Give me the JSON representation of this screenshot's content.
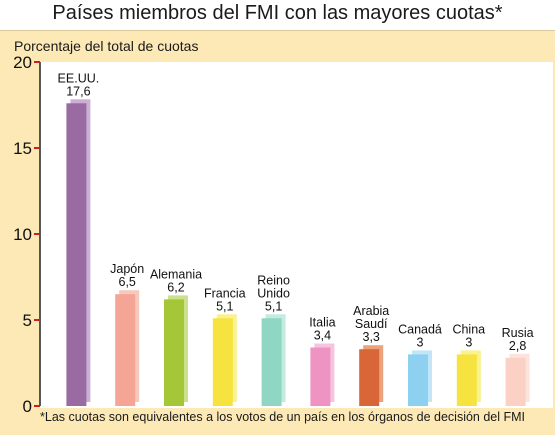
{
  "chart_data": {
    "type": "bar",
    "title": "Países miembros del FMI con las mayores cuotas*",
    "ylabel": "Porcentaje del total de cuotas",
    "footnote": "*Las cuotas son equivalentes a los votos de un país en los órganos de decisión del FMI",
    "ylim": [
      0,
      20
    ],
    "yticks": [
      "0",
      "5",
      "10",
      "15",
      "20"
    ],
    "grid": false,
    "categories": [
      [
        "EE.UU."
      ],
      [
        "Japón"
      ],
      [
        "Alemania"
      ],
      [
        "Francia"
      ],
      [
        "Reino",
        "Unido"
      ],
      [
        "Italia"
      ],
      [
        "Arabia",
        "Saudí"
      ],
      [
        "Canadá"
      ],
      [
        "China"
      ],
      [
        "Rusia"
      ]
    ],
    "values": [
      17.6,
      6.5,
      6.2,
      5.1,
      5.1,
      3.4,
      3.3,
      3,
      3,
      2.8
    ],
    "value_labels": [
      "17,6",
      "6,5",
      "6,2",
      "5,1",
      "5,1",
      "3,4",
      "3,3",
      "3",
      "3",
      "2,8"
    ],
    "colors": [
      "#9a6aa3",
      "#f4a596",
      "#a4c637",
      "#f6e33f",
      "#8fd6c3",
      "#ee93c2",
      "#d96636",
      "#8ed0f0",
      "#f6e33f",
      "#fbd0c5"
    ],
    "shadow_colors": [
      "#cbb0d4",
      "#f7c9bd",
      "#cbe18c",
      "#faf18f",
      "#c3ebdf",
      "#f5c4de",
      "#e9a37d",
      "#c2e6f7",
      "#faf18f",
      "#fce4dc"
    ]
  }
}
